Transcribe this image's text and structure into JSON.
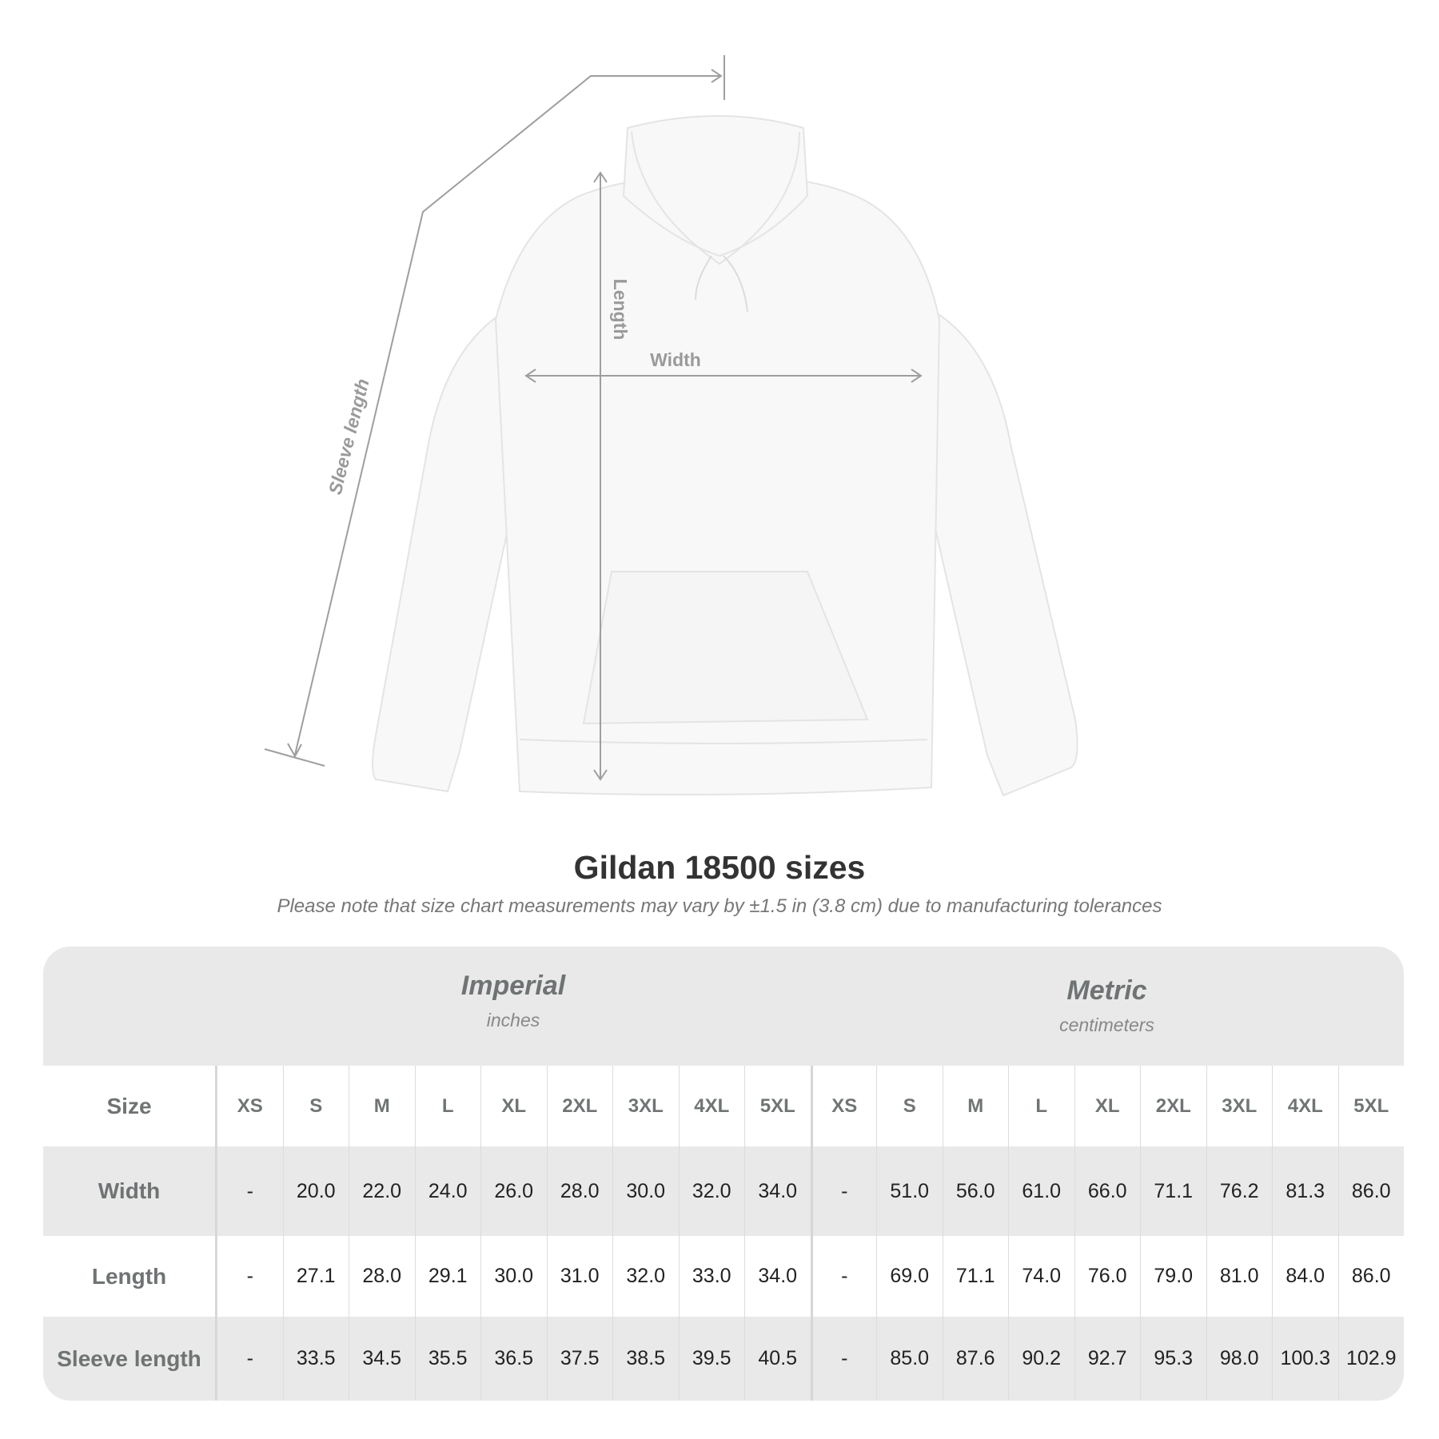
{
  "diagram": {
    "labels": {
      "sleeve": "Sleeve length",
      "length": "Length",
      "width": "Width"
    },
    "colors": {
      "line": "#9e9e9e",
      "garment": "#f7f7f7"
    }
  },
  "title": "Gildan 18500 sizes",
  "note": "Please note that size chart measurements may vary by ±1.5 in (3.8 cm) due to manufacturing tolerances",
  "table": {
    "imperial": {
      "label": "Imperial",
      "unit": "inches"
    },
    "metric": {
      "label": "Metric",
      "unit": "centimeters"
    },
    "size_label": "Size",
    "sizes": [
      "XS",
      "S",
      "M",
      "L",
      "XL",
      "2XL",
      "3XL",
      "4XL",
      "5XL"
    ],
    "rows": [
      {
        "label": "Width",
        "imperial": [
          "-",
          "20.0",
          "22.0",
          "24.0",
          "26.0",
          "28.0",
          "30.0",
          "32.0",
          "34.0"
        ],
        "metric": [
          "-",
          "51.0",
          "56.0",
          "61.0",
          "66.0",
          "71.1",
          "76.2",
          "81.3",
          "86.0"
        ]
      },
      {
        "label": "Length",
        "imperial": [
          "-",
          "27.1",
          "28.0",
          "29.1",
          "30.0",
          "31.0",
          "32.0",
          "33.0",
          "34.0"
        ],
        "metric": [
          "-",
          "69.0",
          "71.1",
          "74.0",
          "76.0",
          "79.0",
          "81.0",
          "84.0",
          "86.0"
        ]
      },
      {
        "label": "Sleeve length",
        "imperial": [
          "-",
          "33.5",
          "34.5",
          "35.5",
          "36.5",
          "37.5",
          "38.5",
          "39.5",
          "40.5"
        ],
        "metric": [
          "-",
          "85.0",
          "87.6",
          "90.2",
          "92.7",
          "95.3",
          "98.0",
          "100.3",
          "102.9"
        ]
      }
    ]
  }
}
